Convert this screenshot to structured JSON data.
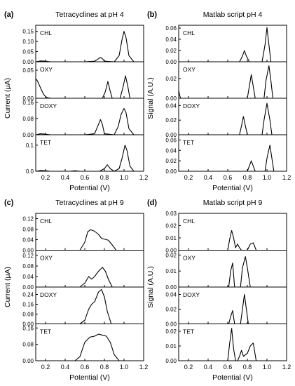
{
  "figure": {
    "panels": [
      {
        "letter": "(a)",
        "title": "Tetracyclines at pH 4",
        "ylabel": "Current (μA)",
        "xlabel": "Potential (V)"
      },
      {
        "letter": "(b)",
        "title": "Matlab script pH 4",
        "ylabel": "Signal (A.U.)",
        "xlabel": "Potential (V)"
      },
      {
        "letter": "(c)",
        "title": "Tetracyclines at pH 9",
        "ylabel": "Current (μA)",
        "xlabel": "Potential (V)"
      },
      {
        "letter": "(d)",
        "title": "Matlab script pH 9",
        "ylabel": "Signal (A.U.)",
        "xlabel": "Potential (V)"
      }
    ]
  },
  "chart_data": [
    {
      "type": "line",
      "title": "Tetracyclines at pH 4",
      "xlabel": "Potential (V)",
      "ylabel": "Current (μA)",
      "xlim": [
        0.1,
        1.2
      ],
      "xticks": [
        "0.2",
        "0.4",
        "0.6",
        "0.8",
        "1.0",
        "1.2"
      ],
      "subplots": [
        {
          "label": "CHL",
          "ylim": [
            0,
            0.18
          ],
          "yticks": [
            "0.00",
            "0.05",
            "0.10",
            "0.15"
          ],
          "x": [
            0.1,
            0.15,
            0.2,
            0.25,
            0.3,
            0.6,
            0.7,
            0.74,
            0.76,
            0.78,
            0.8,
            0.9,
            0.95,
            0.98,
            1.0,
            1.02,
            1.05,
            1.1,
            1.2
          ],
          "y": [
            0.0,
            0.004,
            0.003,
            0.0,
            0.0,
            0.0,
            0.003,
            0.015,
            0.022,
            0.015,
            0.003,
            0.0,
            0.03,
            0.11,
            0.15,
            0.12,
            0.03,
            0.0,
            0.0
          ]
        },
        {
          "label": "OXY",
          "ylim": [
            0,
            0.065
          ],
          "yticks": [
            "0.00",
            "0.05"
          ],
          "x": [
            0.1,
            0.12,
            0.14,
            0.16,
            0.18,
            0.2,
            0.22,
            0.25,
            0.3,
            0.6,
            0.78,
            0.81,
            0.835,
            0.86,
            0.88,
            0.96,
            0.99,
            1.015,
            1.04,
            1.06,
            1.2
          ],
          "y": [
            0.035,
            0.03,
            0.022,
            0.014,
            0.007,
            0.003,
            0.001,
            0.0,
            0.0,
            0.0,
            0.0,
            0.012,
            0.03,
            0.012,
            0.0,
            0.0,
            0.02,
            0.04,
            0.02,
            0.0,
            0.0
          ]
        },
        {
          "label": "DOXY",
          "ylim": [
            0,
            0.18
          ],
          "yticks": [
            "0.00",
            "0.08",
            "0.16"
          ],
          "x": [
            0.1,
            0.15,
            0.2,
            0.25,
            0.3,
            0.6,
            0.7,
            0.73,
            0.76,
            0.78,
            0.8,
            0.9,
            0.94,
            0.97,
            1.0,
            1.02,
            1.05,
            1.1,
            1.2
          ],
          "y": [
            0.0,
            0.005,
            0.003,
            0.0,
            0.0,
            0.0,
            0.005,
            0.04,
            0.075,
            0.05,
            0.005,
            0.0,
            0.04,
            0.1,
            0.13,
            0.11,
            0.03,
            0.0,
            0.0
          ]
        },
        {
          "label": "TET",
          "ylim": [
            0,
            0.14
          ],
          "yticks": [
            "0.0",
            "0.1"
          ],
          "x": [
            0.1,
            0.15,
            0.2,
            0.25,
            0.3,
            0.45,
            0.5,
            0.55,
            0.6,
            0.75,
            0.8,
            0.83,
            0.86,
            0.9,
            0.95,
            0.98,
            1.01,
            1.03,
            1.06,
            1.1,
            1.2
          ],
          "y": [
            0.0,
            0.003,
            0.002,
            0.0,
            0.0,
            0.0,
            0.002,
            0.0,
            0.0,
            0.0,
            0.01,
            0.025,
            0.01,
            0.0,
            0.01,
            0.05,
            0.1,
            0.08,
            0.02,
            0.0,
            0.0
          ]
        }
      ]
    },
    {
      "type": "line",
      "title": "Matlab script pH 4",
      "xlabel": "Potential (V)",
      "ylabel": "Signal (A.U.)",
      "xlim": [
        0.1,
        1.2
      ],
      "xticks": [
        "0.2",
        "0.4",
        "0.6",
        "0.8",
        "1.0",
        "1.2"
      ],
      "subplots": [
        {
          "label": "CHL",
          "ylim": [
            0,
            0.065
          ],
          "yticks": [
            "0.00",
            "0.02",
            "0.04",
            "0.06"
          ],
          "x": [
            0.1,
            0.72,
            0.75,
            0.77,
            0.79,
            0.82,
            0.95,
            0.98,
            1.0,
            1.02,
            1.04,
            1.2
          ],
          "y": [
            0.0,
            0.0,
            0.01,
            0.02,
            0.01,
            0.0,
            0.0,
            0.03,
            0.061,
            0.03,
            0.0,
            0.0
          ]
        },
        {
          "label": "OXY",
          "ylim": [
            0,
            0.037
          ],
          "yticks": [
            "0.00",
            "0.02"
          ],
          "x": [
            0.1,
            0.11,
            0.12,
            0.13,
            0.2,
            0.8,
            0.82,
            0.84,
            0.86,
            0.88,
            0.97,
            0.99,
            1.02,
            1.04,
            1.06,
            1.2
          ],
          "y": [
            0.008,
            0.003,
            0.0,
            0.0,
            0.0,
            0.0,
            0.012,
            0.024,
            0.012,
            0.0,
            0.0,
            0.018,
            0.033,
            0.018,
            0.0,
            0.0
          ]
        },
        {
          "label": "DOXY",
          "ylim": [
            0,
            0.05
          ],
          "yticks": [
            "0.00",
            "0.02",
            "0.04"
          ],
          "x": [
            0.1,
            0.72,
            0.74,
            0.76,
            0.78,
            0.8,
            0.95,
            0.97,
            1.0,
            1.03,
            1.05,
            1.2
          ],
          "y": [
            0.0,
            0.0,
            0.012,
            0.025,
            0.012,
            0.0,
            0.0,
            0.02,
            0.043,
            0.02,
            0.0,
            0.0
          ]
        },
        {
          "label": "TET",
          "ylim": [
            0,
            0.07
          ],
          "yticks": [
            "0.00",
            "0.02",
            "0.04",
            "0.06"
          ],
          "x": [
            0.1,
            0.8,
            0.82,
            0.84,
            0.86,
            0.88,
            0.98,
            1.0,
            1.03,
            1.05,
            1.07,
            1.2
          ],
          "y": [
            0.0,
            0.0,
            0.01,
            0.02,
            0.01,
            0.0,
            0.0,
            0.025,
            0.05,
            0.025,
            0.0,
            0.0
          ]
        }
      ]
    },
    {
      "type": "line",
      "title": "Tetracyclines at pH 9",
      "xlabel": "Potential (V)",
      "ylabel": "Current (μA)",
      "xlim": [
        0.1,
        1.2
      ],
      "xticks": [
        "0.2",
        "0.4",
        "0.6",
        "0.8",
        "1.0",
        "1.2"
      ],
      "subplots": [
        {
          "label": "CHL",
          "ylim": [
            0,
            0.14
          ],
          "yticks": [
            "0.00",
            "0.04",
            "0.08",
            "0.12"
          ],
          "x": [
            0.55,
            0.6,
            0.63,
            0.66,
            0.7,
            0.74,
            0.77,
            0.8,
            0.84,
            0.88,
            0.92,
            1.2
          ],
          "y": [
            0.0,
            0.03,
            0.07,
            0.078,
            0.072,
            0.06,
            0.045,
            0.042,
            0.038,
            0.02,
            0.0,
            0.0
          ]
        },
        {
          "label": "OXY",
          "ylim": [
            0,
            0.14
          ],
          "yticks": [
            "0.00",
            "0.04",
            "0.08",
            "0.12"
          ],
          "x": [
            0.55,
            0.6,
            0.64,
            0.67,
            0.7,
            0.74,
            0.78,
            0.81,
            0.84,
            0.88,
            1.2
          ],
          "y": [
            0.0,
            0.015,
            0.04,
            0.03,
            0.04,
            0.06,
            0.075,
            0.06,
            0.03,
            0.0,
            0.0
          ]
        },
        {
          "label": "DOXY",
          "ylim": [
            0,
            0.3
          ],
          "yticks": [
            "0.00",
            "0.08",
            "0.16",
            "0.24"
          ],
          "x": [
            0.55,
            0.6,
            0.64,
            0.67,
            0.7,
            0.74,
            0.77,
            0.8,
            0.83,
            0.87,
            1.2
          ],
          "y": [
            0.0,
            0.03,
            0.12,
            0.16,
            0.18,
            0.26,
            0.28,
            0.22,
            0.1,
            0.0,
            0.0
          ]
        },
        {
          "label": "TET",
          "ylim": [
            0,
            0.18
          ],
          "yticks": [
            "0.00",
            "0.08",
            "0.16"
          ],
          "x": [
            0.5,
            0.55,
            0.6,
            0.65,
            0.7,
            0.74,
            0.78,
            0.82,
            0.86,
            0.9,
            0.95,
            1.2
          ],
          "y": [
            0.0,
            0.02,
            0.09,
            0.115,
            0.12,
            0.13,
            0.125,
            0.12,
            0.09,
            0.03,
            0.0,
            0.0
          ]
        }
      ]
    },
    {
      "type": "line",
      "title": "Matlab script pH 9",
      "xlabel": "Potential (V)",
      "ylabel": "Signal (A.U.)",
      "xlim": [
        0.1,
        1.2
      ],
      "xticks": [
        "0.2",
        "0.4",
        "0.6",
        "0.8",
        "1.0",
        "1.2"
      ],
      "subplots": [
        {
          "label": "CHL",
          "ylim": [
            0,
            0.03
          ],
          "yticks": [
            "0.00",
            "0.01",
            "0.02",
            "0.03"
          ],
          "x": [
            0.55,
            0.6,
            0.62,
            0.64,
            0.66,
            0.68,
            0.7,
            0.72,
            0.74,
            0.8,
            0.83,
            0.86,
            0.89,
            1.2
          ],
          "y": [
            0.0,
            0.0,
            0.009,
            0.016,
            0.01,
            0.002,
            0.005,
            0.002,
            0.0,
            0.0,
            0.005,
            0.006,
            0.0,
            0.0
          ]
        },
        {
          "label": "OXY",
          "ylim": [
            0,
            0.023
          ],
          "yticks": [
            "0.00",
            "0.01",
            "0.02"
          ],
          "x": [
            0.55,
            0.61,
            0.63,
            0.65,
            0.67,
            0.73,
            0.75,
            0.78,
            0.8,
            0.83,
            1.2
          ],
          "y": [
            0.0,
            0.0,
            0.01,
            0.015,
            0.0,
            0.0,
            0.012,
            0.019,
            0.012,
            0.0,
            0.0
          ]
        },
        {
          "label": "DOXY",
          "ylim": [
            0,
            0.05
          ],
          "yticks": [
            "0.00",
            "0.02",
            "0.04"
          ],
          "x": [
            0.55,
            0.61,
            0.63,
            0.65,
            0.67,
            0.73,
            0.75,
            0.77,
            0.79,
            0.81,
            1.2
          ],
          "y": [
            0.0,
            0.0,
            0.01,
            0.018,
            0.0,
            0.0,
            0.02,
            0.04,
            0.02,
            0.0,
            0.0
          ]
        },
        {
          "label": "TET",
          "ylim": [
            0,
            0.025
          ],
          "yticks": [
            "0.00",
            "0.01",
            "0.02"
          ],
          "x": [
            0.55,
            0.6,
            0.62,
            0.64,
            0.66,
            0.68,
            0.7,
            0.72,
            0.74,
            0.76,
            0.8,
            0.83,
            0.86,
            0.89,
            1.2
          ],
          "y": [
            0.0,
            0.0,
            0.012,
            0.022,
            0.008,
            0.0,
            0.0,
            0.003,
            0.007,
            0.003,
            0.005,
            0.01,
            0.012,
            0.0,
            0.0
          ]
        }
      ]
    }
  ]
}
